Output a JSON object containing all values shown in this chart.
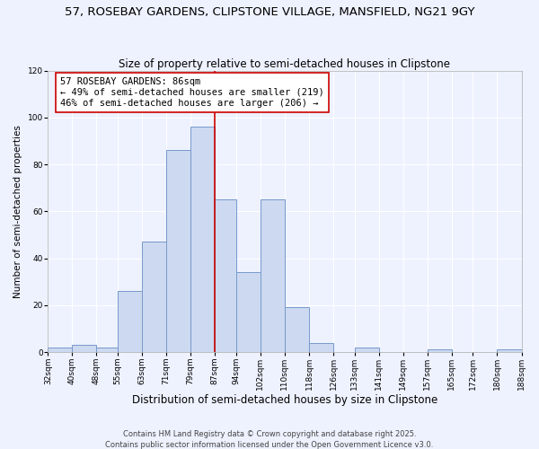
{
  "title": "57, ROSEBAY GARDENS, CLIPSTONE VILLAGE, MANSFIELD, NG21 9GY",
  "subtitle": "Size of property relative to semi-detached houses in Clipstone",
  "xlabel": "Distribution of semi-detached houses by size in Clipstone",
  "ylabel": "Number of semi-detached properties",
  "bins": [
    32,
    40,
    48,
    55,
    63,
    71,
    79,
    87,
    94,
    102,
    110,
    118,
    126,
    133,
    141,
    149,
    157,
    165,
    172,
    180,
    188
  ],
  "bin_labels": [
    "32sqm",
    "40sqm",
    "48sqm",
    "55sqm",
    "63sqm",
    "71sqm",
    "79sqm",
    "87sqm",
    "94sqm",
    "102sqm",
    "110sqm",
    "118sqm",
    "126sqm",
    "133sqm",
    "141sqm",
    "149sqm",
    "157sqm",
    "165sqm",
    "172sqm",
    "180sqm",
    "188sqm"
  ],
  "counts": [
    2,
    3,
    2,
    26,
    47,
    86,
    96,
    65,
    34,
    65,
    19,
    4,
    0,
    2,
    0,
    0,
    1,
    0,
    0,
    1
  ],
  "bar_color": "#ccd9f0",
  "bar_edge_color": "#7799cc",
  "vline_x": 87,
  "vline_color": "#cc0000",
  "annotation_text": "57 ROSEBAY GARDENS: 86sqm\n← 49% of semi-detached houses are smaller (219)\n46% of semi-detached houses are larger (206) →",
  "ylim": [
    0,
    120
  ],
  "yticks": [
    0,
    20,
    40,
    60,
    80,
    100,
    120
  ],
  "background_color": "#eef2ff",
  "grid_color": "#ffffff",
  "footer_line1": "Contains HM Land Registry data © Crown copyright and database right 2025.",
  "footer_line2": "Contains public sector information licensed under the Open Government Licence v3.0.",
  "title_fontsize": 9.5,
  "subtitle_fontsize": 8.5,
  "xlabel_fontsize": 8.5,
  "ylabel_fontsize": 7.5,
  "tick_fontsize": 6.5,
  "annot_fontsize": 7.5,
  "footer_fontsize": 6.0
}
